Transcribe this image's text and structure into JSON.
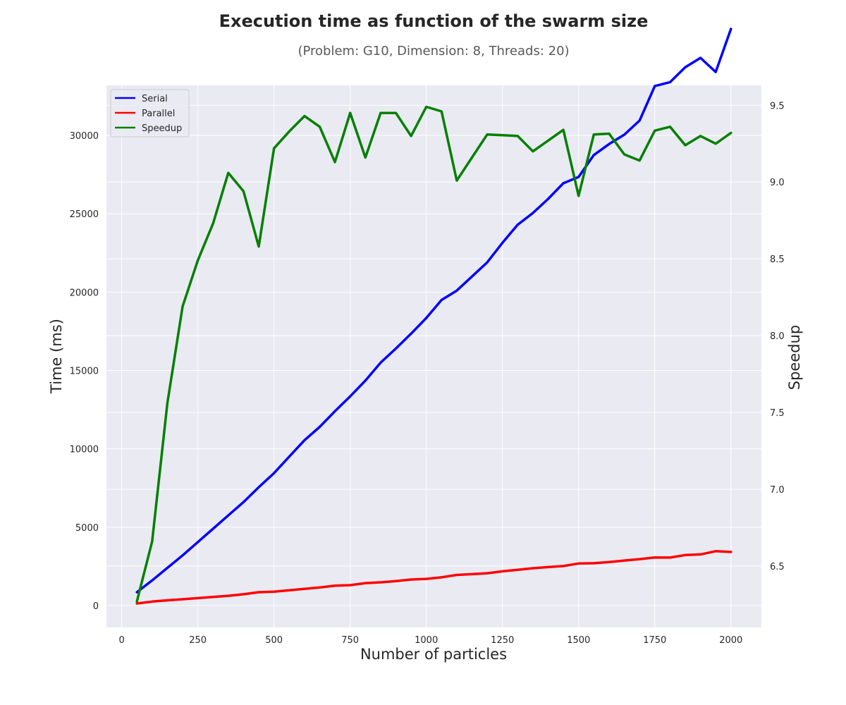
{
  "chart_data": {
    "type": "line",
    "title": "Execution time as function of the swarm size",
    "subtitle": "(Problem: G10, Dimension: 8, Threads: 20)",
    "xlabel": "Number of particles",
    "ylabel": "Time (ms)",
    "y2label": "Speedup",
    "xlim": [
      -50,
      2100
    ],
    "ylim": [
      -1400,
      33200
    ],
    "y2lim": [
      6.1,
      9.63
    ],
    "xticks": [
      0,
      250,
      500,
      750,
      1000,
      1250,
      1500,
      1750,
      2000
    ],
    "yticks": [
      0,
      5000,
      10000,
      15000,
      20000,
      25000,
      30000
    ],
    "y2ticks": [
      "6.5",
      "7.0",
      "7.5",
      "8.0",
      "8.5",
      "9.0",
      "9.5"
    ],
    "grid": true,
    "legend_position": "top-left",
    "x": [
      50,
      100,
      150,
      200,
      250,
      300,
      350,
      400,
      450,
      500,
      550,
      600,
      650,
      700,
      750,
      800,
      850,
      900,
      950,
      1000,
      1050,
      1100,
      1150,
      1200,
      1250,
      1300,
      1350,
      1400,
      1450,
      1500,
      1550,
      1600,
      1650,
      1700,
      1750,
      1800,
      1850,
      1900,
      1950,
      2000
    ],
    "series": [
      {
        "name": "Serial",
        "axis": "left",
        "color": "#0000ff",
        "values": [
          850,
          1600,
          2400,
          3200,
          4050,
          4900,
          5750,
          6600,
          7550,
          8450,
          9500,
          10550,
          11400,
          12400,
          13350,
          14350,
          15500,
          16400,
          17350,
          18350,
          19500,
          20100,
          21000,
          21900,
          23150,
          24300,
          25050,
          25950,
          26950,
          27350,
          28750,
          29450,
          30050,
          30950,
          33150,
          33400,
          34350,
          34950,
          34050,
          36800
        ]
      },
      {
        "name": "Parallel",
        "axis": "left",
        "color": "#ff0000",
        "values": [
          130,
          250,
          330,
          400,
          470,
          550,
          620,
          720,
          850,
          880,
          970,
          1060,
          1150,
          1270,
          1300,
          1430,
          1480,
          1560,
          1660,
          1700,
          1800,
          1950,
          2000,
          2060,
          2180,
          2280,
          2380,
          2450,
          2520,
          2680,
          2700,
          2770,
          2870,
          2960,
          3070,
          3060,
          3220,
          3260,
          3470,
          3420
        ]
      },
      {
        "name": "Speedup",
        "axis": "right",
        "color": "#008000",
        "values": [
          6.27,
          6.66,
          7.56,
          8.19,
          8.49,
          8.73,
          9.06,
          8.94,
          8.58,
          9.22,
          9.33,
          9.43,
          9.36,
          9.13,
          9.45,
          9.16,
          9.45,
          9.45,
          9.3,
          9.49,
          9.46,
          9.01,
          9.16,
          9.31,
          9.305,
          9.3,
          9.2,
          9.27,
          9.34,
          8.91,
          9.31,
          9.315,
          9.18,
          9.14,
          9.335,
          9.36,
          9.24,
          9.3,
          9.25,
          9.32
        ]
      }
    ]
  }
}
